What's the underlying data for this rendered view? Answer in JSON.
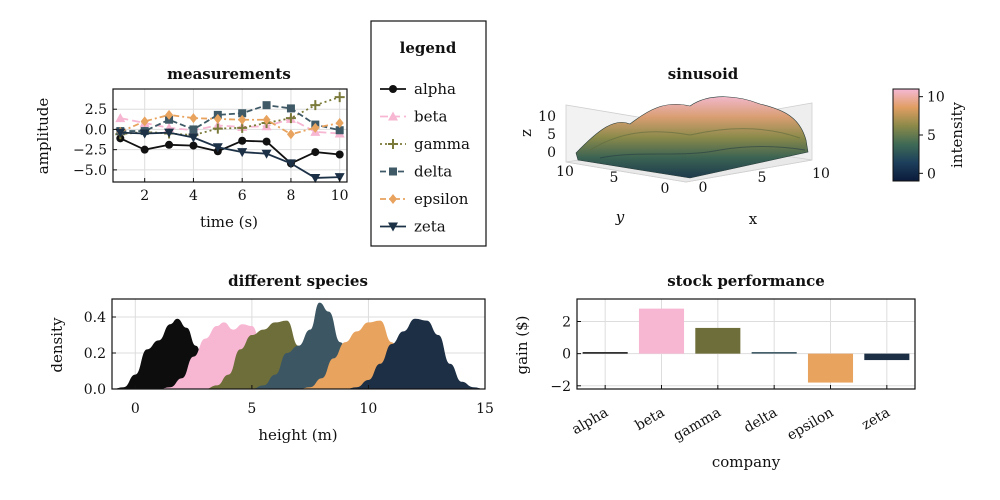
{
  "chart_data": [
    {
      "type": "line",
      "title": "measurements",
      "xlabel": "time (s)",
      "ylabel": "amplitude",
      "xlim": [
        0.7,
        10.3
      ],
      "ylim": [
        -6.5,
        5.0
      ],
      "xticks": [
        2,
        4,
        6,
        8,
        10
      ],
      "yticks": [
        2.5,
        0.0,
        -2.5,
        -5.0
      ],
      "xtick_labels": [
        "2",
        "4",
        "6",
        "8",
        "10"
      ],
      "ytick_labels": [
        "2.5",
        "0.0",
        "−2.5",
        "−5.0"
      ],
      "grid": true,
      "x": [
        1,
        2,
        3,
        4,
        5,
        6,
        7,
        8,
        9,
        10
      ],
      "series": [
        {
          "name": "alpha",
          "color": "#111111",
          "dash": "",
          "marker": "circle",
          "values": [
            -1.1,
            -2.5,
            -1.9,
            -2.0,
            -2.7,
            -1.4,
            -1.5,
            -4.2,
            -2.8,
            -3.1
          ]
        },
        {
          "name": "beta",
          "color": "#f7b6d2",
          "dash": "8,4",
          "marker": "triangle-up",
          "values": [
            1.4,
            0.8,
            0.2,
            -0.1,
            0.5,
            0.3,
            0.4,
            1.3,
            -0.3,
            -0.5
          ]
        },
        {
          "name": "gamma",
          "color": "#7a7a3a",
          "dash": "2,3",
          "marker": "plus",
          "values": [
            -0.6,
            -0.3,
            -0.5,
            -0.7,
            0.1,
            0.2,
            0.8,
            1.4,
            3.0,
            4.0
          ]
        },
        {
          "name": "delta",
          "color": "#3f5a66",
          "dash": "6,3",
          "marker": "square",
          "values": [
            -0.2,
            -0.2,
            1.2,
            0.0,
            1.8,
            2.0,
            3.0,
            2.6,
            0.6,
            -0.1
          ]
        },
        {
          "name": "epsilon",
          "color": "#e8a35f",
          "dash": "6,3,2,3",
          "marker": "diamond",
          "values": [
            -0.3,
            1.0,
            1.8,
            1.4,
            1.3,
            1.2,
            1.2,
            -0.6,
            0.2,
            0.8
          ]
        },
        {
          "name": "zeta",
          "color": "#1d3146",
          "dash": "",
          "marker": "triangle-down",
          "values": [
            -0.4,
            -0.5,
            -0.4,
            -1.0,
            -2.2,
            -2.8,
            -3.0,
            -4.2,
            -6.0,
            -5.9
          ]
        }
      ]
    },
    {
      "type": "area",
      "subtype": "3d-surface",
      "title": "sinusoid",
      "xlabel": "x",
      "ylabel": "y",
      "zlabel": "z",
      "x_tick_labels": [
        "0",
        "5",
        "10"
      ],
      "y_tick_labels": [
        "10",
        "5",
        "0"
      ],
      "z_tick_labels": [
        "10",
        "5",
        "0"
      ],
      "colorbar": {
        "label": "intensity",
        "ticks": [
          "10",
          "5",
          "0"
        ],
        "range": [
          -1,
          11
        ]
      }
    },
    {
      "type": "area",
      "title": "different species",
      "xlabel": "height (m)",
      "ylabel": "density",
      "xlim": [
        -1,
        15
      ],
      "ylim": [
        0,
        0.5
      ],
      "xticks": [
        0,
        5,
        10,
        15
      ],
      "yticks": [
        0.0,
        0.2,
        0.4
      ],
      "xtick_labels": [
        "0",
        "5",
        "10",
        "15"
      ],
      "ytick_labels": [
        "0.0",
        "0.2",
        "0.4"
      ],
      "grid": true,
      "series": [
        {
          "color": "#0d0d0d",
          "x": [
            -1,
            -0.5,
            0,
            0.5,
            1,
            1.5,
            1.8,
            2.2,
            2.6,
            3,
            3.5,
            4,
            4.5
          ],
          "values": [
            0,
            0.01,
            0.08,
            0.22,
            0.27,
            0.36,
            0.39,
            0.34,
            0.24,
            0.12,
            0.04,
            0.01,
            0
          ]
        },
        {
          "color": "#f7b6d2",
          "x": [
            1,
            1.5,
            2,
            2.5,
            3,
            3.5,
            3.8,
            4.2,
            4.6,
            5,
            5.5,
            6,
            6.5
          ],
          "values": [
            0,
            0.01,
            0.06,
            0.18,
            0.28,
            0.35,
            0.37,
            0.33,
            0.36,
            0.35,
            0.2,
            0.05,
            0
          ]
        },
        {
          "color": "#6e6e3a",
          "x": [
            3,
            3.5,
            4,
            4.5,
            5,
            5.5,
            6,
            6.5,
            7,
            7.5,
            8,
            8.5
          ],
          "values": [
            0,
            0.02,
            0.08,
            0.22,
            0.3,
            0.33,
            0.37,
            0.38,
            0.24,
            0.08,
            0.02,
            0
          ]
        },
        {
          "color": "#3c5763",
          "x": [
            5,
            5.5,
            6,
            6.5,
            7,
            7.5,
            7.9,
            8.3,
            8.8,
            9.3,
            9.8,
            10.3
          ],
          "values": [
            0,
            0.02,
            0.08,
            0.2,
            0.24,
            0.33,
            0.48,
            0.43,
            0.26,
            0.1,
            0.02,
            0
          ]
        },
        {
          "color": "#e8a35f",
          "x": [
            7,
            7.5,
            8,
            8.5,
            9,
            9.5,
            10,
            10.5,
            11,
            11.5,
            12,
            12.5
          ],
          "values": [
            0,
            0.01,
            0.06,
            0.17,
            0.26,
            0.32,
            0.37,
            0.38,
            0.26,
            0.1,
            0.02,
            0
          ]
        },
        {
          "color": "#1c2f44",
          "x": [
            9,
            9.5,
            10,
            10.5,
            11,
            11.5,
            12,
            12.5,
            13,
            13.5,
            14,
            14.5,
            15
          ],
          "values": [
            0,
            0.01,
            0.05,
            0.14,
            0.25,
            0.32,
            0.39,
            0.38,
            0.3,
            0.14,
            0.04,
            0.01,
            0
          ]
        }
      ]
    },
    {
      "type": "bar",
      "title": "stock performance",
      "xlabel": "company",
      "ylabel": "gain ($)",
      "categories": [
        "alpha",
        "beta",
        "gamma",
        "delta",
        "epsilon",
        "zeta"
      ],
      "values": [
        0.05,
        2.8,
        1.6,
        0.1,
        -1.8,
        -0.4
      ],
      "colors": [
        "#111111",
        "#f7b6d2",
        "#6e6e3a",
        "#3f5a66",
        "#e8a35f",
        "#1c2f44"
      ],
      "ylim": [
        -2.2,
        3.4
      ],
      "yticks": [
        2,
        0,
        -2
      ],
      "ytick_labels": [
        "2",
        "0",
        "−2"
      ],
      "grid": true
    }
  ],
  "legend": {
    "title": "legend",
    "entries": [
      "alpha",
      "beta",
      "gamma",
      "delta",
      "epsilon",
      "zeta"
    ]
  }
}
